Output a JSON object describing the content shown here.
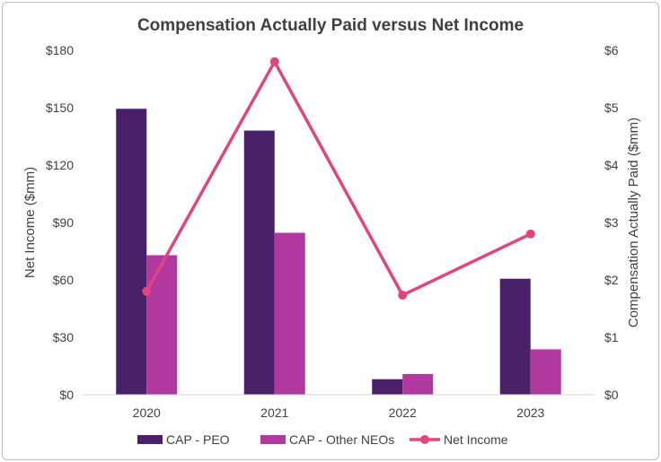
{
  "chart_data": {
    "type": "bar",
    "title": "Compensation Actually Paid versus Net Income",
    "categories": [
      "2020",
      "2021",
      "2022",
      "2023"
    ],
    "series": [
      {
        "name": "CAP - PEO",
        "axis": "right",
        "type": "bar",
        "color": "#4a2068",
        "values": [
          4.98,
          4.6,
          0.27,
          2.02
        ]
      },
      {
        "name": "CAP - Other NEOs",
        "axis": "right",
        "type": "bar",
        "color": "#b1389f",
        "values": [
          2.43,
          2.82,
          0.36,
          0.79
        ]
      },
      {
        "name": "Net Income",
        "axis": "left",
        "type": "line",
        "color": "#e0457f",
        "values": [
          54,
          174,
          52,
          84
        ]
      }
    ],
    "y_left": {
      "label": "Net Income ($mm)",
      "ylim": [
        0,
        180
      ],
      "ticks": [
        0,
        30,
        60,
        90,
        120,
        150,
        180
      ],
      "tick_labels": [
        "$0",
        "$30",
        "$60",
        "$90",
        "$120",
        "$150",
        "$180"
      ]
    },
    "y_right": {
      "label": "Compensation Actually Paid ($mm)",
      "ylim": [
        0,
        6
      ],
      "ticks": [
        0,
        1,
        2,
        3,
        4,
        5,
        6
      ],
      "tick_labels": [
        "$0",
        "$1",
        "$2",
        "$3",
        "$4",
        "$5",
        "$6"
      ]
    },
    "grid": false,
    "legend_position": "bottom"
  }
}
